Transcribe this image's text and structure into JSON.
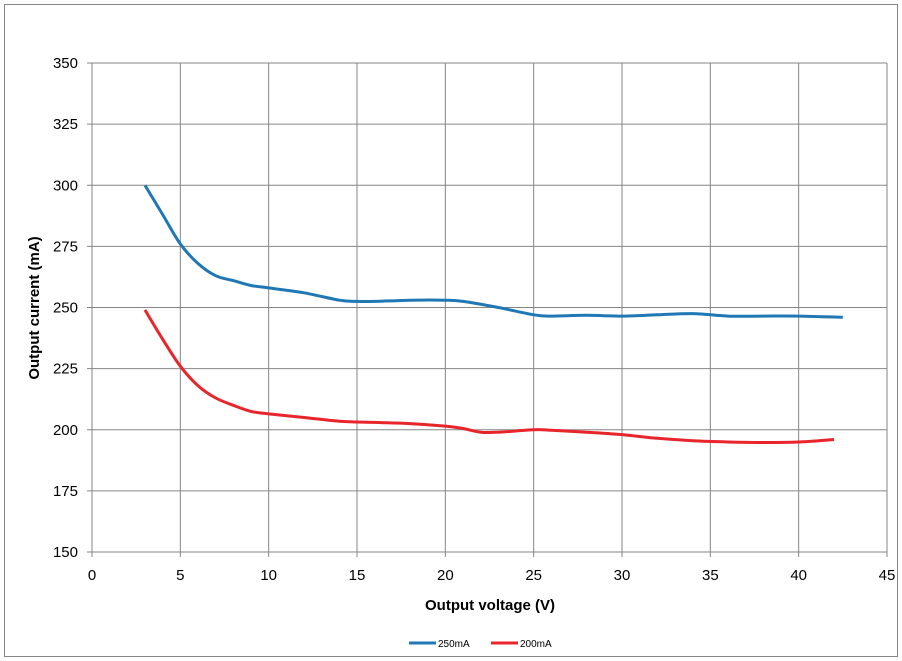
{
  "chart_data": {
    "type": "line",
    "title": "",
    "xlabel": "Output voltage (V)",
    "ylabel": "Output current (mA)",
    "xlim": [
      0,
      45
    ],
    "ylim": [
      150,
      350
    ],
    "xticks": [
      "0",
      "5",
      "10",
      "15",
      "20",
      "25",
      "30",
      "35",
      "40",
      "45"
    ],
    "yticks": [
      "150",
      "175",
      "200",
      "225",
      "250",
      "275",
      "300",
      "325",
      "350"
    ],
    "grid": true,
    "legend_position": "bottom",
    "series": [
      {
        "name": "250mA",
        "color": "#1f77b4",
        "x": [
          3,
          4,
          5,
          6,
          7,
          8,
          9,
          10,
          12,
          14,
          15,
          16,
          18,
          20,
          21,
          23,
          25,
          26,
          28,
          30,
          32,
          34,
          36,
          38,
          40,
          42.5
        ],
        "y": [
          300,
          288,
          276,
          268,
          263,
          261,
          259,
          258,
          256,
          253,
          252.5,
          252.5,
          253,
          253,
          252.5,
          250,
          247,
          246.5,
          246.8,
          246.5,
          247,
          247.5,
          246.5,
          246.5,
          246.5,
          246
        ]
      },
      {
        "name": "200mA",
        "color": "#e8252b",
        "x": [
          3,
          4,
          5,
          6,
          7,
          8,
          9,
          10,
          12,
          14,
          16,
          18,
          20,
          21,
          22,
          23,
          25,
          26,
          28,
          30,
          32,
          34,
          36,
          38,
          40,
          42
        ],
        "y": [
          249,
          237,
          226,
          218,
          213,
          210,
          207.5,
          206.5,
          205,
          203.5,
          203,
          202.5,
          201.5,
          200.5,
          199,
          199,
          200,
          199.8,
          199,
          198,
          196.5,
          195.5,
          195,
          194.8,
          195,
          196
        ]
      }
    ]
  }
}
